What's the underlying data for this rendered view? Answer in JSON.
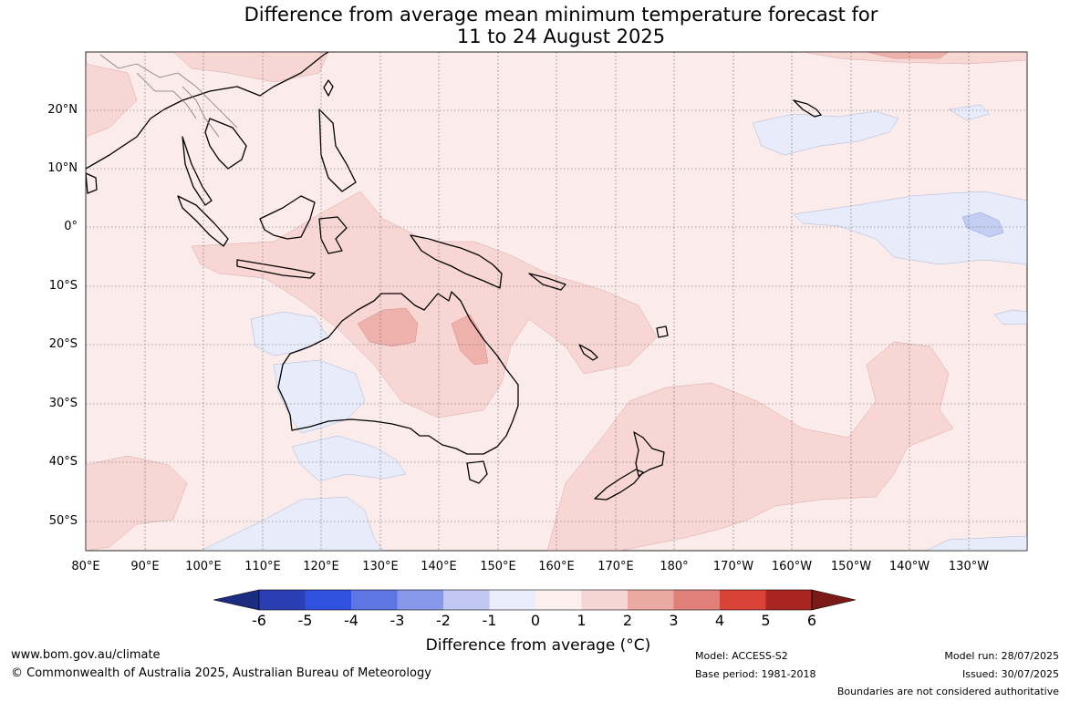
{
  "title": {
    "line1": "Difference from average mean minimum temperature forecast for",
    "line2": "11 to 24 August 2025"
  },
  "map": {
    "latitude_labels": [
      "20°N",
      "10°N",
      "0°",
      "10°S",
      "20°S",
      "30°S",
      "40°S",
      "50°S"
    ],
    "longitude_labels": [
      "80°E",
      "90°E",
      "100°E",
      "110°E",
      "120°E",
      "130°E",
      "140°E",
      "150°E",
      "160°E",
      "170°E",
      "180°",
      "170°W",
      "160°W",
      "150°W",
      "140°W",
      "130°W"
    ],
    "colors": {
      "background_anomaly_0_1": "#fbeceb",
      "anomaly_1_2": "#f7d6d4",
      "anomaly_2_3": "#efb1ab",
      "anomaly_minus1_0": "#e8ecfa",
      "anomaly_minus2_minus1": "#c4cdf2",
      "coastline": "#000000",
      "gridline": "#555555"
    }
  },
  "colorbar": {
    "ticks": [
      "-6",
      "-5",
      "-4",
      "-3",
      "-2",
      "-1",
      "0",
      "1",
      "2",
      "3",
      "4",
      "5",
      "6"
    ],
    "colors": [
      "#1c2c80",
      "#2a3fb4",
      "#3050de",
      "#5e75e4",
      "#8798ea",
      "#c1c8f4",
      "#eaedfb",
      "#fcf0ee",
      "#f6d5d3",
      "#eaa9a3",
      "#e18079",
      "#d94337",
      "#a8261f",
      "#7a1a16"
    ],
    "label": "Difference from average (°C)"
  },
  "footer": {
    "website": "www.bom.gov.au/climate",
    "copyright": "© Commonwealth of Australia 2025, Australian Bureau of Meteorology",
    "model": "Model: ACCESS-S2",
    "base_period": "Base period: 1981-2018",
    "model_run": "Model run: 28/07/2025",
    "issued": "Issued: 30/07/2025",
    "disclaimer": "Boundaries are not considered authoritative"
  }
}
